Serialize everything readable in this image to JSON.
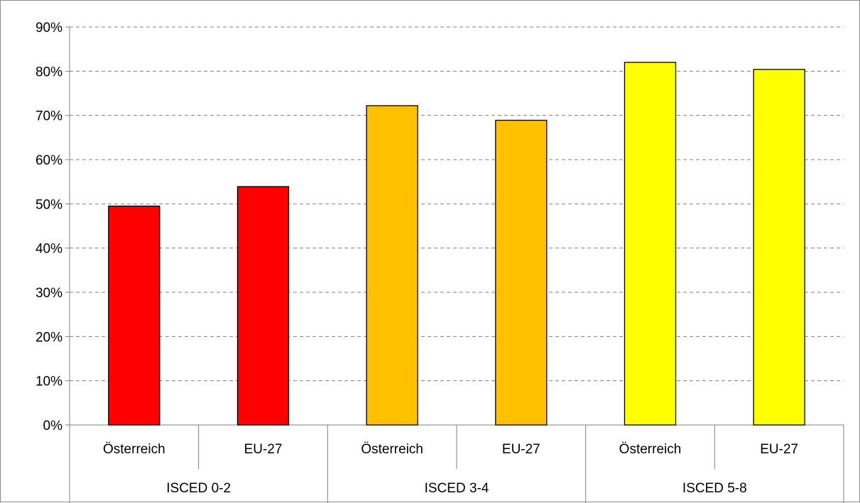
{
  "chart_data": {
    "type": "bar",
    "ylim": [
      0,
      90
    ],
    "y_ticks": [
      0,
      10,
      20,
      30,
      40,
      50,
      60,
      70,
      80,
      90
    ],
    "y_tick_format": "%",
    "grid": true,
    "grid_style": "dashed",
    "legend": "none",
    "groups": [
      {
        "label": "ISCED 0-2",
        "color": "#ff0000",
        "bars": [
          {
            "category": "Österreich",
            "value": 49.5
          },
          {
            "category": "EU-27",
            "value": 53.9
          }
        ]
      },
      {
        "label": "ISCED 3-4",
        "color": "#ffc000",
        "bars": [
          {
            "category": "Österreich",
            "value": 72.2
          },
          {
            "category": "EU-27",
            "value": 68.9
          }
        ]
      },
      {
        "label": "ISCED 5-8",
        "color": "#ffff00",
        "bars": [
          {
            "category": "Österreich",
            "value": 82.0
          },
          {
            "category": "EU-27",
            "value": 80.4
          }
        ]
      }
    ]
  }
}
